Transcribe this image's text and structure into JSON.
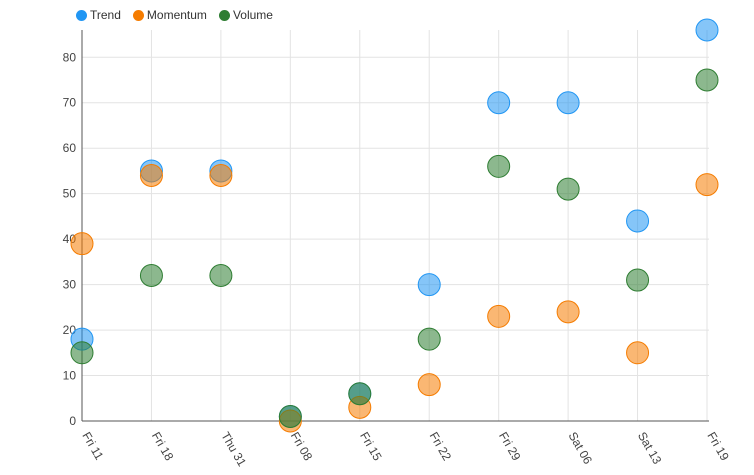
{
  "chart_data": {
    "type": "scatter",
    "categories": [
      "Fri 11",
      "Fri 18",
      "Thu 31",
      "Fri 08",
      "Fri 15",
      "Fri 22",
      "Fri 29",
      "Sat 06",
      "Sat 13",
      "Fri 19"
    ],
    "series": [
      {
        "name": "Trend",
        "color": "#2196f3",
        "values": [
          18,
          55,
          55,
          1,
          6,
          30,
          70,
          70,
          44,
          86
        ]
      },
      {
        "name": "Momentum",
        "color": "#f57c00",
        "values": [
          39,
          54,
          54,
          0,
          3,
          8,
          23,
          24,
          15,
          52
        ]
      },
      {
        "name": "Volume",
        "color": "#2e7d32",
        "values": [
          15,
          32,
          32,
          1,
          6,
          18,
          56,
          51,
          31,
          75
        ]
      }
    ],
    "yticks": [
      0,
      10,
      20,
      30,
      40,
      50,
      60,
      70,
      80
    ],
    "ylim": [
      0,
      86
    ],
    "title": "",
    "xlabel": "",
    "ylabel": "",
    "grid": true,
    "legend_position": "top-left"
  }
}
